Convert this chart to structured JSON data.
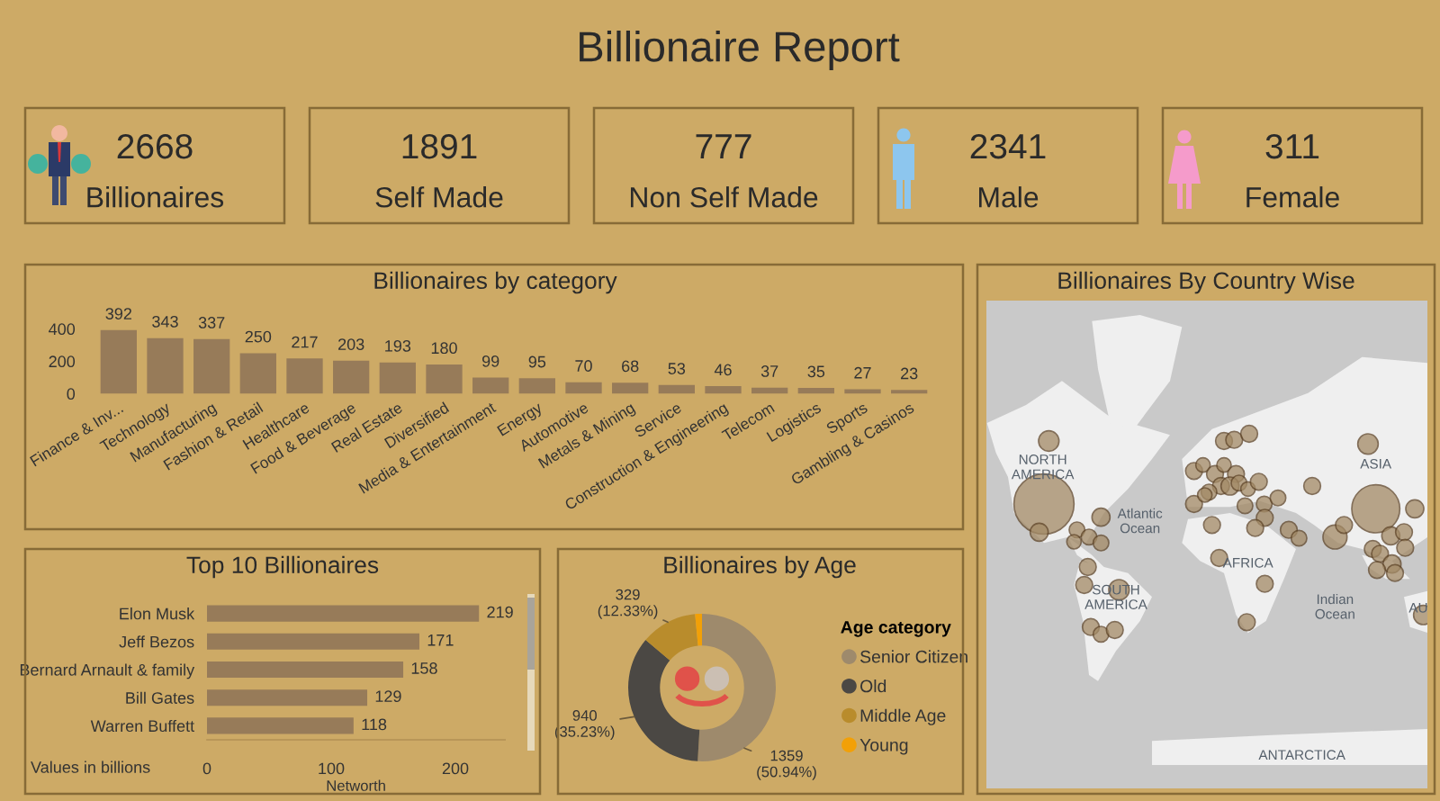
{
  "chart_data": [
    {
      "type": "other",
      "title": "Billionaire Report",
      "categories": [
        "Billionaires",
        "Self Made",
        "Non Self Made",
        "Male",
        "Female"
      ],
      "values": [
        2668,
        1891,
        777,
        2341,
        311
      ],
      "data_labels": true
    },
    {
      "type": "bar",
      "title": "Billionaires by category",
      "categories": [
        "Finance & Inv...",
        "Technology",
        "Manufacturing",
        "Fashion & Retail",
        "Healthcare",
        "Food & Beverage",
        "Real Estate",
        "Diversified",
        "Media & Entertainment",
        "Energy",
        "Automotive",
        "Metals & Mining",
        "Service",
        "Construction & Engineering",
        "Telecom",
        "Logistics",
        "Sports",
        "Gambling & Casinos"
      ],
      "values": [
        392,
        343,
        337,
        250,
        217,
        203,
        193,
        180,
        99,
        95,
        70,
        68,
        53,
        46,
        37,
        35,
        27,
        23
      ],
      "color": "#977b59",
      "ylim": [
        0,
        400
      ],
      "yticks": [
        0,
        200,
        400
      ],
      "data_labels": true
    },
    {
      "type": "bar",
      "orientation": "horizontal",
      "title": "Top 10 Billionaires",
      "categories": [
        "Elon Musk",
        "Jeff Bezos",
        "Bernard Arnault & family",
        "Bill Gates",
        "Warren Buffett"
      ],
      "values": [
        219,
        171,
        158,
        129,
        118
      ],
      "color": "#977b59",
      "xlim": [
        0,
        240
      ],
      "xticks": [
        0,
        100,
        200
      ],
      "xlabel": "Networth",
      "annotations": [
        "Values in billions"
      ],
      "data_labels": true
    },
    {
      "type": "donut",
      "title": "Billionaires by Age",
      "categories": [
        "Senior Citizen",
        "Old",
        "Middle Age",
        "Young"
      ],
      "values": [
        1359,
        940,
        329,
        40
      ],
      "colors": [
        "#9e8a6c",
        "#4b4844",
        "#b98c2c",
        "#f2a007"
      ],
      "value_labels": [
        "1359\n(50.94%)",
        "940\n(35.23%)",
        "329\n(12.33%)",
        null
      ],
      "legend_title": "Age category",
      "legend": "right"
    },
    {
      "type": "other",
      "title": "Billionaires By Country Wise",
      "annotations": [
        "NORTH\nAMERICA",
        "Atlantic\nOcean",
        "AFRICA",
        "SOUTH\nAMERICA",
        "ASIA",
        "Indian\nOcean",
        "AU",
        "ANTARCTICA"
      ]
    }
  ]
}
